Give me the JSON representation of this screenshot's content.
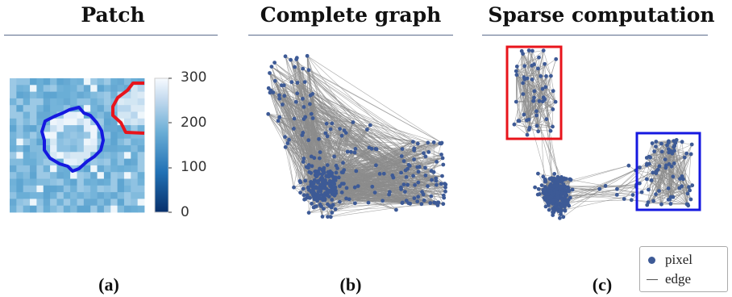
{
  "panels": {
    "a": {
      "title": "Patch",
      "caption": "(a)"
    },
    "b": {
      "title": "Complete graph",
      "caption": "(b)"
    },
    "c": {
      "title": "Sparse computation",
      "caption": "(c)"
    }
  },
  "colorbar": {
    "ticks": [
      "300",
      "200",
      "100",
      "0"
    ]
  },
  "legend": {
    "pixel_label": "pixel",
    "edge_label": "edge"
  },
  "colors": {
    "node": "#3d5a96",
    "edge": "#8c8c8c",
    "box_red": "#e8141b",
    "box_blue": "#1518e0",
    "rule": "#5b6b8c"
  }
}
